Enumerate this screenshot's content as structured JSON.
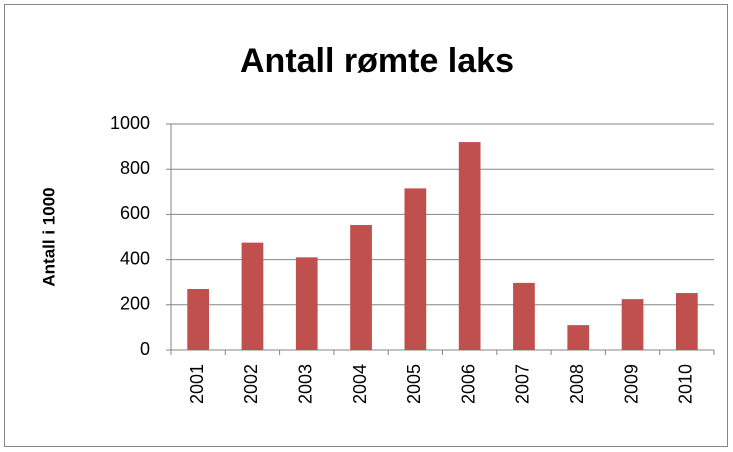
{
  "chart_data": {
    "type": "bar",
    "title": "Antall rømte laks",
    "y_label": "Antall i 1000",
    "categories": [
      "2001",
      "2002",
      "2003",
      "2004",
      "2005",
      "2006",
      "2007",
      "2008",
      "2009",
      "2010"
    ],
    "values": [
      270,
      475,
      410,
      553,
      715,
      920,
      297,
      110,
      225,
      252
    ],
    "color": "#c0504d",
    "ylim": [
      0,
      1000
    ],
    "yticks": [
      0,
      200,
      400,
      600,
      800,
      1000
    ],
    "grid": true
  }
}
